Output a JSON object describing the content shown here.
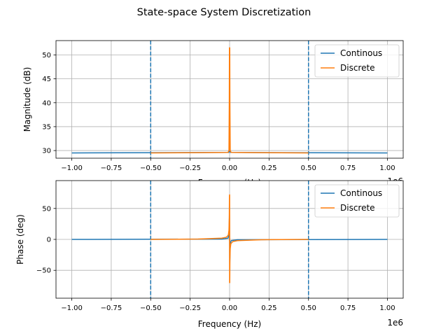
{
  "figure": {
    "suptitle": "State-space System Discretization"
  },
  "colors": {
    "continous": "#1f77b4",
    "discrete": "#ff7f0e",
    "grid": "#b0b0b0",
    "vline": "#1f77b4"
  },
  "chart_data": [
    {
      "type": "line",
      "title": "",
      "xlabel": "Frequency (Hz)",
      "ylabel": "Magnitude (dB)",
      "x_offset_label": "1e6",
      "xlim": [
        -1.1,
        1.1
      ],
      "ylim": [
        28.4,
        53.0
      ],
      "x_ticks": [
        -1.0,
        -0.75,
        -0.5,
        -0.25,
        0.0,
        0.25,
        0.5,
        0.75,
        1.0
      ],
      "x_tick_labels": [
        "−1.00",
        "−0.75",
        "−0.50",
        "−0.25",
        "0.00",
        "0.25",
        "0.50",
        "0.75",
        "1.00"
      ],
      "y_ticks": [
        30,
        35,
        40,
        45,
        50
      ],
      "y_tick_labels": [
        "30",
        "35",
        "40",
        "45",
        "50"
      ],
      "grid": true,
      "legend": "upper-right",
      "vlines": {
        "x": [
          -0.5,
          0.5
        ],
        "style": "dashed"
      },
      "series": [
        {
          "name": "Continous",
          "x": [
            -1.0,
            -0.005,
            -0.002,
            -0.0005,
            0.0,
            0.0005,
            0.002,
            0.005,
            1.0
          ],
          "y": [
            29.5,
            29.6,
            30.0,
            35.0,
            46.5,
            35.0,
            30.0,
            29.6,
            29.5
          ]
        },
        {
          "name": "Discrete",
          "x": [
            -0.5,
            -0.01,
            -0.004,
            -0.002,
            -0.001,
            0.0,
            0.001,
            0.002,
            0.004,
            0.01,
            0.5
          ],
          "y": [
            29.5,
            29.6,
            30.0,
            40.0,
            51.5,
            30.0,
            51.5,
            40.0,
            30.0,
            29.6,
            29.5
          ]
        }
      ]
    },
    {
      "type": "line",
      "title": "",
      "xlabel": "Frequency (Hz)",
      "ylabel": "Phase (deg)",
      "x_offset_label": "1e6",
      "xlim": [
        -1.1,
        1.1
      ],
      "ylim": [
        -95,
        95
      ],
      "x_ticks": [
        -1.0,
        -0.75,
        -0.5,
        -0.25,
        0.0,
        0.25,
        0.5,
        0.75,
        1.0
      ],
      "x_tick_labels": [
        "−1.00",
        "−0.75",
        "−0.50",
        "−0.25",
        "0.00",
        "0.25",
        "0.50",
        "0.75",
        "1.00"
      ],
      "y_ticks": [
        -50,
        0,
        50
      ],
      "y_tick_labels": [
        "−50",
        "0",
        "50"
      ],
      "grid": true,
      "legend": "upper-right",
      "vlines": {
        "x": [
          -0.5,
          0.5
        ],
        "style": "dashed"
      },
      "series": [
        {
          "name": "Continous",
          "x": [
            -1.0,
            -0.05,
            -0.01,
            -0.003,
            -0.001,
            0.0,
            0.001,
            0.003,
            0.01,
            0.05,
            1.0
          ],
          "y": [
            0.0,
            0.5,
            2.0,
            8.0,
            40.0,
            0.0,
            -40.0,
            -8.0,
            -2.0,
            -0.5,
            0.0
          ]
        },
        {
          "name": "Discrete",
          "x": [
            -0.5,
            -0.2,
            -0.05,
            -0.02,
            -0.008,
            -0.004,
            -0.002,
            -0.001,
            -0.0003,
            0.0,
            0.0003,
            0.001,
            0.002,
            0.004,
            0.008,
            0.02,
            0.05,
            0.2,
            0.5
          ],
          "y": [
            0.0,
            0.5,
            2.0,
            3.5,
            7.0,
            15.0,
            35.0,
            70.0,
            72.0,
            -70.0,
            72.0,
            -70.0,
            -35.0,
            -15.0,
            -7.0,
            -3.5,
            -2.0,
            -0.5,
            0.0
          ]
        }
      ]
    }
  ]
}
